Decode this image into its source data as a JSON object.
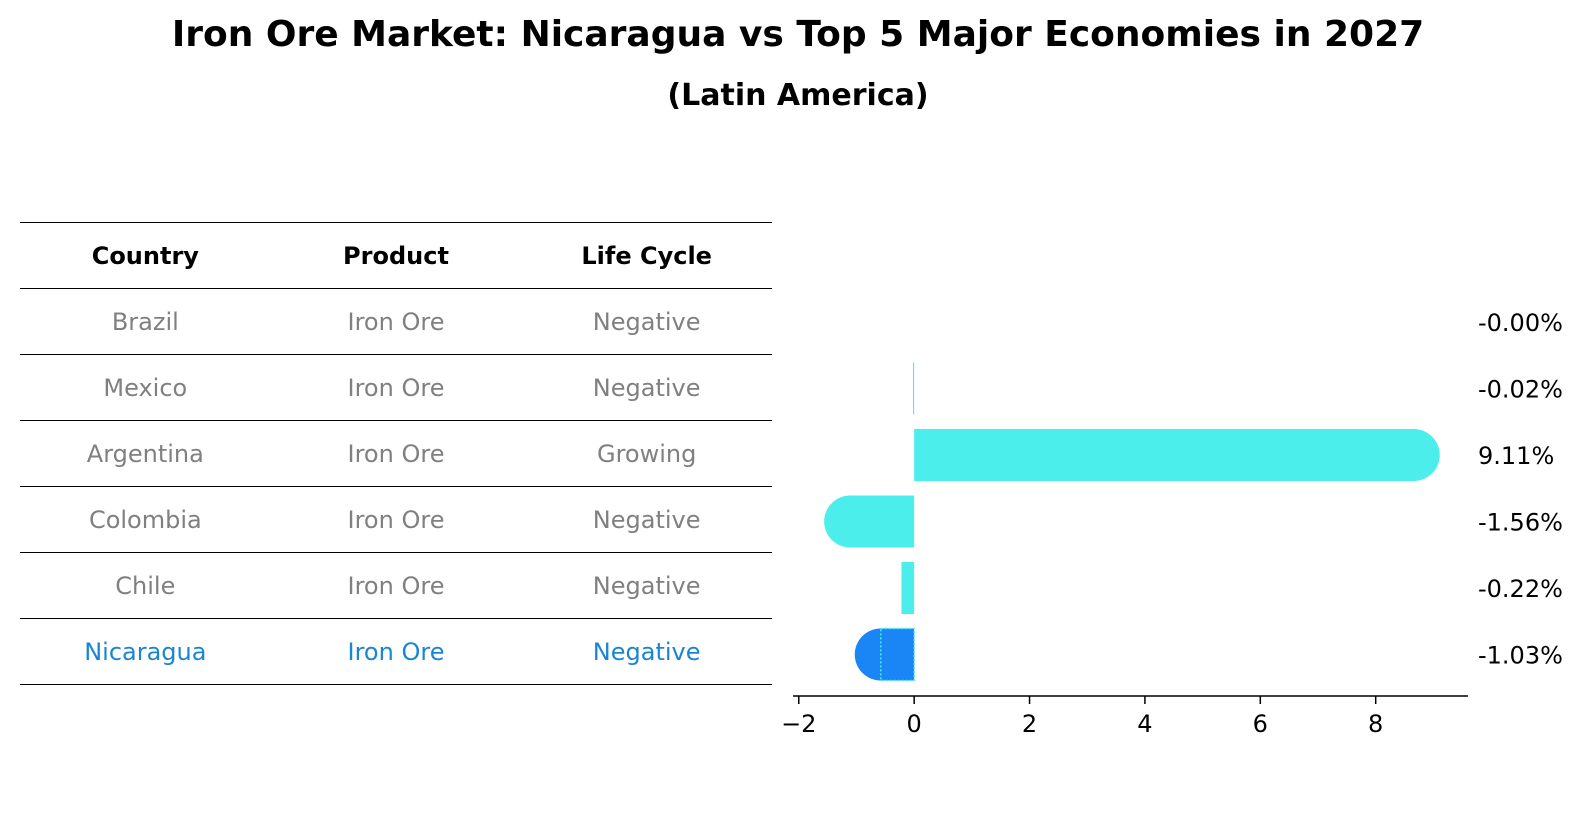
{
  "title": "Iron Ore Market: Nicaragua vs Top 5 Major Economies in 2027",
  "subtitle": "(Latin America)",
  "table": {
    "headers": [
      "Country",
      "Product",
      "Life Cycle"
    ],
    "rows": [
      [
        "Brazil",
        "Iron Ore",
        "Negative"
      ],
      [
        "Mexico",
        "Iron Ore",
        "Negative"
      ],
      [
        "Argentina",
        "Iron Ore",
        "Growing"
      ],
      [
        "Colombia",
        "Iron Ore",
        "Negative"
      ],
      [
        "Chile",
        "Iron Ore",
        "Negative"
      ],
      [
        "Nicaragua",
        "Iron Ore",
        "Negative"
      ]
    ],
    "highlight_row": 5
  },
  "colors": {
    "bar": "#4ceeeb",
    "highlight_bar": "#1a86f5",
    "highlight_text": "#1a86d2",
    "muted_text": "#808080"
  },
  "chart_data": {
    "type": "bar",
    "orientation": "horizontal",
    "categories": [
      "Brazil",
      "Mexico",
      "Argentina",
      "Colombia",
      "Chile",
      "Nicaragua"
    ],
    "values": [
      -0.0,
      -0.02,
      9.11,
      -1.56,
      -0.22,
      -1.03
    ],
    "value_labels": [
      "-0.00%",
      "-0.02%",
      "9.11%",
      "-1.56%",
      "-0.22%",
      "-1.03%"
    ],
    "highlight": "Nicaragua",
    "xlim": [
      -2.1,
      9.6
    ],
    "xticks": [
      -2,
      0,
      2,
      4,
      6,
      8
    ],
    "xtick_labels": [
      "−2",
      "0",
      "2",
      "4",
      "6",
      "8"
    ]
  }
}
